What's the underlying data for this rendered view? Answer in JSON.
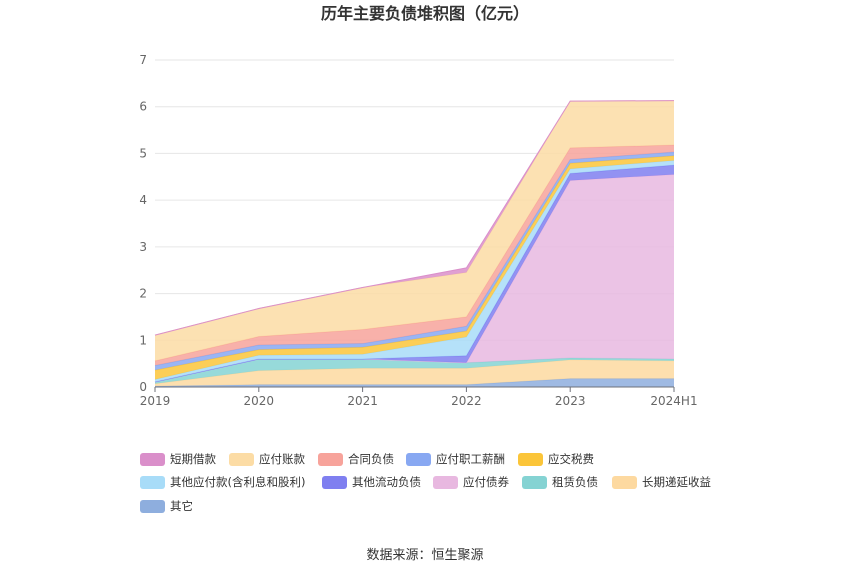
{
  "chart_data": {
    "type": "area",
    "stacked": true,
    "title": "历年主要负债堆积图（亿元）",
    "x": [
      "2019",
      "2020",
      "2021",
      "2022",
      "2023",
      "2024H1"
    ],
    "ylim": [
      0,
      7
    ],
    "yticks": [
      "0",
      "1",
      "2",
      "3",
      "4",
      "5",
      "6",
      "7"
    ],
    "grid": true,
    "legend_position": "bottom",
    "series": [
      {
        "name": "其它",
        "color": "#8eaede",
        "values": [
          0.02,
          0.05,
          0.05,
          0.05,
          0.18,
          0.18
        ]
      },
      {
        "name": "长期递延收益",
        "color": "#fdd9a0",
        "values": [
          0.05,
          0.3,
          0.35,
          0.35,
          0.4,
          0.38
        ]
      },
      {
        "name": "租赁负债",
        "color": "#85d3d3",
        "values": [
          0.04,
          0.25,
          0.2,
          0.12,
          0.04,
          0.04
        ]
      },
      {
        "name": "应付债券",
        "color": "#e8b8e0",
        "values": [
          0,
          0,
          0,
          0,
          3.8,
          3.95
        ]
      },
      {
        "name": "其他流动负债",
        "color": "#7f7ff0",
        "values": [
          0,
          0,
          0,
          0.15,
          0.15,
          0.2
        ]
      },
      {
        "name": "其他应付款(含利息和股利)",
        "color": "#a8dcf8",
        "values": [
          0.05,
          0.08,
          0.1,
          0.4,
          0.1,
          0.1
        ]
      },
      {
        "name": "应交税费",
        "color": "#fbc539",
        "values": [
          0.2,
          0.12,
          0.15,
          0.13,
          0.12,
          0.1
        ]
      },
      {
        "name": "应付职工薪酬",
        "color": "#88a8f2",
        "values": [
          0.1,
          0.1,
          0.08,
          0.1,
          0.08,
          0.08
        ]
      },
      {
        "name": "合同负债",
        "color": "#f7a39b",
        "values": [
          0.1,
          0.18,
          0.3,
          0.2,
          0.25,
          0.15
        ]
      },
      {
        "name": "应付账款",
        "color": "#fcdca5",
        "values": [
          0.55,
          0.6,
          0.9,
          0.95,
          1.0,
          0.95
        ]
      },
      {
        "name": "短期借款",
        "color": "#da8fca",
        "values": [
          0,
          0,
          0,
          0.1,
          0,
          0
        ]
      }
    ],
    "legend_order": [
      "短期借款",
      "应付账款",
      "合同负债",
      "应付职工薪酬",
      "应交税费",
      "其他应付款(含利息和股利)",
      "其他流动负债",
      "应付债券",
      "租赁负债",
      "长期递延收益",
      "其它"
    ],
    "source": "数据来源：恒生聚源"
  }
}
